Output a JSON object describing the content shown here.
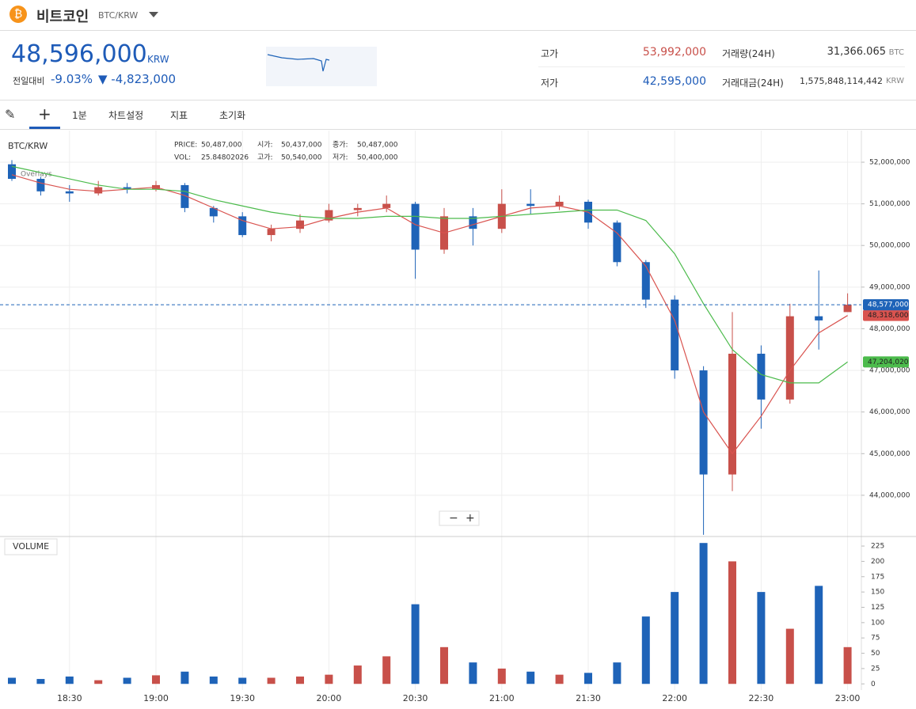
{
  "header": {
    "title": "비트코인",
    "pair": "BTC/KRW",
    "price": "48,596,000",
    "currency": "KRW",
    "change_label": "전일대비",
    "change_rate": "-9.03%",
    "change_amount": "▼ -4,823,000",
    "high_label": "고가",
    "high": "53,992,000",
    "low_label": "저가",
    "low": "42,595,000",
    "volume_label": "거래량(24H)",
    "volume": "31,366.065",
    "volume_unit": "BTC",
    "amount_label": "거래대금(24H)",
    "amount": "1,575,848,114,442",
    "amount_unit": "KRW"
  },
  "toolbar": {
    "interval": "1분",
    "settings": "차트설정",
    "indicators": "지표",
    "reset": "초기화"
  },
  "info": {
    "symbol": "BTC/KRW",
    "price_label": "PRICE:",
    "price": "50,487,000",
    "open_label": "시가:",
    "open": "50,437,000",
    "close_label": "종가:",
    "close": "50,487,000",
    "vol_label": "VOL:",
    "vol": "25.84802026",
    "high_label": "고가:",
    "high": "50,540,000",
    "low_label": "저가:",
    "low": "50,400,000",
    "overlays": "Overlays"
  },
  "chart_data": {
    "type": "candlestick",
    "up_color": "#c8504a",
    "down_color": "#1e63b8",
    "categories": [
      null,
      null,
      "18:30",
      null,
      null,
      "19:00",
      null,
      null,
      "19:30",
      null,
      null,
      "20:00",
      null,
      null,
      "20:30",
      null,
      null,
      "21:00",
      null,
      null,
      "21:30",
      null,
      null,
      "22:00",
      null,
      null,
      "22:30",
      null,
      null,
      "23:00"
    ],
    "open": [
      51950000,
      51600000,
      51300000,
      51250000,
      51400000,
      51350000,
      51450000,
      50900000,
      50700000,
      50250000,
      50400000,
      50600000,
      50850000,
      50900000,
      51000000,
      49900000,
      50700000,
      50400000,
      51000000,
      50950000,
      51050000,
      50550000,
      49600000,
      48700000,
      47000000,
      44500000,
      47400000,
      46300000,
      48300000,
      48400000
    ],
    "high": [
      52050000,
      51650000,
      51450000,
      51550000,
      51500000,
      51550000,
      51500000,
      50950000,
      50800000,
      50500000,
      50750000,
      51000000,
      51000000,
      51200000,
      51050000,
      50900000,
      50900000,
      51350000,
      51350000,
      51200000,
      51100000,
      50600000,
      49650000,
      48800000,
      47100000,
      48400000,
      47600000,
      48600000,
      49400000,
      48850000
    ],
    "low": [
      51550000,
      51200000,
      51050000,
      51200000,
      51250000,
      51300000,
      50800000,
      50550000,
      50200000,
      50100000,
      50300000,
      50550000,
      50700000,
      50800000,
      49200000,
      49800000,
      50000000,
      50300000,
      50750000,
      50850000,
      50400000,
      49500000,
      48500000,
      46800000,
      43050000,
      44100000,
      45600000,
      46200000,
      47500000,
      48450000
    ],
    "close": [
      51600000,
      51300000,
      51250000,
      51400000,
      51350000,
      51450000,
      50900000,
      50700000,
      50250000,
      50400000,
      50600000,
      50850000,
      50900000,
      51000000,
      49900000,
      50700000,
      50400000,
      51000000,
      50950000,
      51050000,
      50550000,
      49600000,
      48700000,
      47000000,
      44500000,
      47400000,
      46300000,
      48300000,
      48200000,
      48577000
    ],
    "overlays": [
      {
        "color": "#d9534f",
        "values": [
          51700000,
          51500000,
          51350000,
          51300000,
          51350000,
          51400000,
          51200000,
          50900000,
          50600000,
          50400000,
          50450000,
          50650000,
          50800000,
          50900000,
          50500000,
          50300000,
          50500000,
          50700000,
          50900000,
          50950000,
          50800000,
          50300000,
          49500000,
          48200000,
          46000000,
          45000000,
          45900000,
          47000000,
          47900000,
          48318600
        ],
        "last_label": "48,318,600"
      },
      {
        "color": "#4cbb4c",
        "values": [
          51900000,
          51750000,
          51600000,
          51450000,
          51350000,
          51350000,
          51300000,
          51100000,
          50950000,
          50800000,
          50700000,
          50650000,
          50650000,
          50700000,
          50700000,
          50650000,
          50650000,
          50700000,
          50750000,
          50800000,
          50850000,
          50850000,
          50600000,
          49800000,
          48600000,
          47500000,
          46900000,
          46700000,
          46700000,
          47204020
        ],
        "last_label": "47,204,020"
      }
    ],
    "last_price": {
      "value": 48577000,
      "label": "48,577,000"
    },
    "ylim": [
      43010000,
      52760000
    ],
    "yticks": [
      {
        "value": 44000000,
        "label": "44,000,000"
      },
      {
        "value": 45000000,
        "label": "45,000,000"
      },
      {
        "value": 46000000,
        "label": "46,000,000"
      },
      {
        "value": 47000000,
        "label": "47,000,000"
      },
      {
        "value": 48000000,
        "label": "48,000,000"
      },
      {
        "value": 49000000,
        "label": "49,000,000"
      },
      {
        "value": 50000000,
        "label": "50,000,000"
      },
      {
        "value": 51000000,
        "label": "51,000,000"
      },
      {
        "value": 52000000,
        "label": "52,000,000"
      }
    ],
    "grid": true,
    "volume": {
      "title": "VOLUME",
      "values": [
        10,
        8,
        12,
        6,
        10,
        14,
        20,
        12,
        10,
        10,
        12,
        15,
        30,
        45,
        130,
        60,
        35,
        25,
        20,
        15,
        18,
        35,
        110,
        150,
        230,
        200,
        150,
        90,
        160,
        60
      ],
      "ylim": [
        -10,
        238
      ],
      "yticks": [
        0,
        25,
        50,
        75,
        100,
        125,
        150,
        175,
        200,
        225
      ]
    }
  }
}
